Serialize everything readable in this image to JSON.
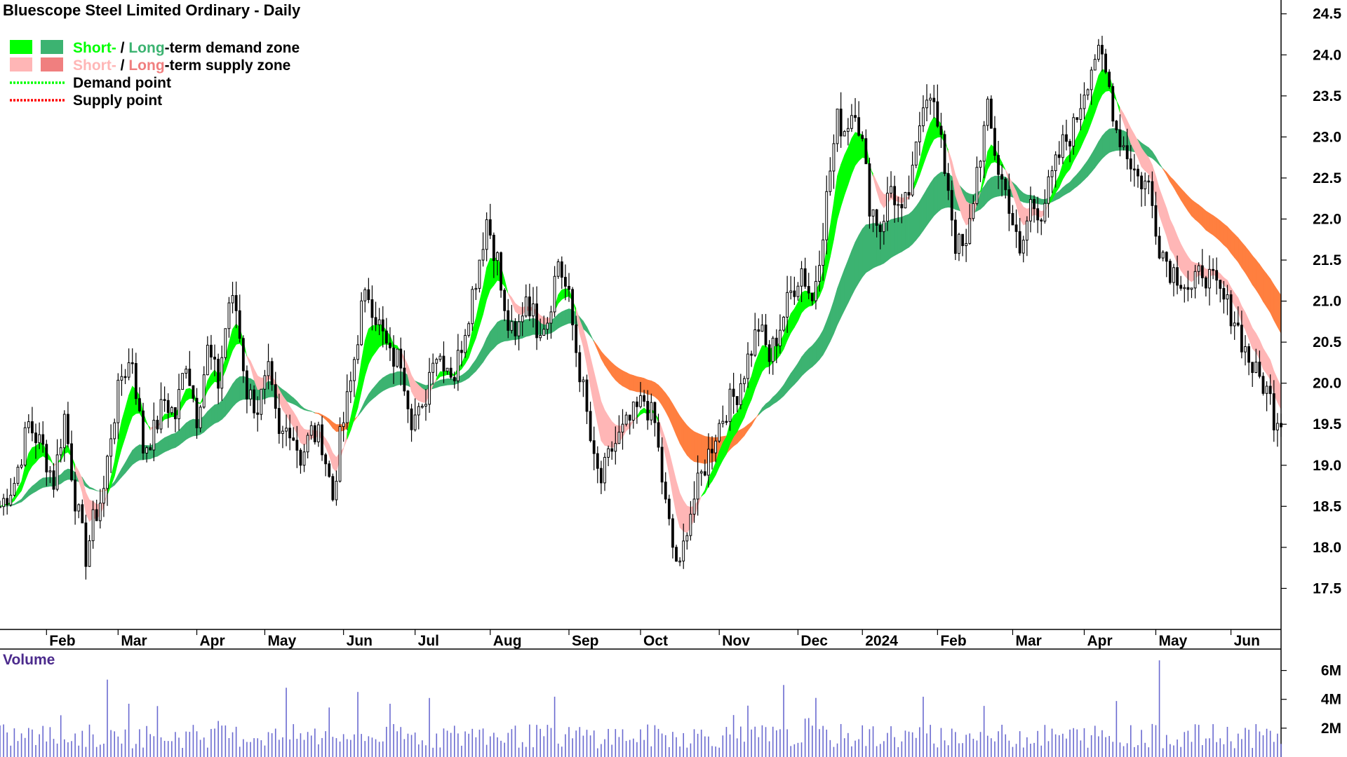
{
  "chart_data": {
    "type": "candlestick",
    "title": "Bluescope Steel Limited Ordinary - Daily",
    "legend": {
      "placement": "top-left",
      "items": [
        {
          "parts": [
            {
              "text": "Short-",
              "color": "#00ff00"
            },
            {
              "text": " / ",
              "color": "#000000"
            },
            {
              "text": "Long",
              "color": "#3cb371"
            },
            {
              "text": "-term demand zone",
              "color": "#000000"
            }
          ],
          "swatches": [
            "#00ff00",
            "#3cb371"
          ]
        },
        {
          "parts": [
            {
              "text": "Short-",
              "color": "#ffb6b6"
            },
            {
              "text": " / ",
              "color": "#000000"
            },
            {
              "text": "Long",
              "color": "#f07f7f"
            },
            {
              "text": "-term supply zone",
              "color": "#000000"
            }
          ],
          "swatches": [
            "#ffb6b6",
            "#f07f7f"
          ]
        },
        {
          "parts": [
            {
              "text": "Demand point",
              "color": "#000000"
            }
          ],
          "line": "#00ff00"
        },
        {
          "parts": [
            {
              "text": "Supply point",
              "color": "#000000"
            }
          ],
          "line": "#ff0000"
        }
      ]
    },
    "y_axis": {
      "side": "right",
      "range": [
        17.0,
        24.6
      ],
      "ticks": [
        "17.5",
        "18.0",
        "18.5",
        "19.0",
        "19.5",
        "20.0",
        "20.5",
        "21.0",
        "21.5",
        "22.0",
        "22.5",
        "23.0",
        "23.5",
        "24.0",
        "24.5"
      ]
    },
    "x_axis": {
      "range": [
        0,
        358
      ],
      "ticks": [
        {
          "label": "Feb",
          "x": 13
        },
        {
          "label": "Mar",
          "x": 33
        },
        {
          "label": "Apr",
          "x": 55
        },
        {
          "label": "May",
          "x": 74
        },
        {
          "label": "Jun",
          "x": 96
        },
        {
          "label": "Jul",
          "x": 116
        },
        {
          "label": "Aug",
          "x": 137
        },
        {
          "label": "Sep",
          "x": 159
        },
        {
          "label": "Oct",
          "x": 179
        },
        {
          "label": "Nov",
          "x": 201
        },
        {
          "label": "Dec",
          "x": 223
        },
        {
          "label": "2024",
          "x": 241
        },
        {
          "label": "Feb",
          "x": 262
        },
        {
          "label": "Mar",
          "x": 283
        },
        {
          "label": "Apr",
          "x": 303
        },
        {
          "label": "May",
          "x": 323
        },
        {
          "label": "Jun",
          "x": 344
        }
      ]
    },
    "price_anchors": [
      [
        0,
        18.5
      ],
      [
        4,
        18.8
      ],
      [
        8,
        19.5
      ],
      [
        12,
        19.2
      ],
      [
        15,
        18.8
      ],
      [
        18,
        19.6
      ],
      [
        21,
        18.6
      ],
      [
        24,
        17.9
      ],
      [
        26,
        18.3
      ],
      [
        29,
        18.7
      ],
      [
        31,
        19.4
      ],
      [
        34,
        20.1
      ],
      [
        37,
        20.3
      ],
      [
        40,
        19.2
      ],
      [
        43,
        19.4
      ],
      [
        46,
        19.8
      ],
      [
        49,
        19.6
      ],
      [
        52,
        20.3
      ],
      [
        55,
        19.6
      ],
      [
        58,
        20.4
      ],
      [
        61,
        20.0
      ],
      [
        64,
        21.0
      ],
      [
        66,
        20.9
      ],
      [
        69,
        19.9
      ],
      [
        72,
        19.7
      ],
      [
        75,
        20.1
      ],
      [
        78,
        19.3
      ],
      [
        81,
        19.5
      ],
      [
        84,
        19.1
      ],
      [
        87,
        19.4
      ],
      [
        90,
        19.3
      ],
      [
        93,
        18.6
      ],
      [
        95,
        19.3
      ],
      [
        98,
        20.0
      ],
      [
        101,
        20.9
      ],
      [
        103,
        21.1
      ],
      [
        106,
        20.7
      ],
      [
        109,
        20.3
      ],
      [
        112,
        20.3
      ],
      [
        115,
        19.6
      ],
      [
        118,
        19.6
      ],
      [
        121,
        20.4
      ],
      [
        124,
        20.3
      ],
      [
        127,
        20.1
      ],
      [
        130,
        20.7
      ],
      [
        133,
        21.3
      ],
      [
        136,
        22.0
      ],
      [
        139,
        21.5
      ],
      [
        141,
        20.8
      ],
      [
        144,
        20.5
      ],
      [
        147,
        21.1
      ],
      [
        150,
        20.7
      ],
      [
        153,
        20.8
      ],
      [
        156,
        21.5
      ],
      [
        159,
        21.0
      ],
      [
        161,
        20.4
      ],
      [
        163,
        19.9
      ],
      [
        166,
        19.0
      ],
      [
        168,
        18.8
      ],
      [
        171,
        19.2
      ],
      [
        174,
        19.4
      ],
      [
        177,
        19.6
      ],
      [
        180,
        19.8
      ],
      [
        183,
        19.5
      ],
      [
        186,
        18.5
      ],
      [
        188,
        18.0
      ],
      [
        190,
        17.7
      ],
      [
        192,
        18.3
      ],
      [
        194,
        18.6
      ],
      [
        197,
        19.0
      ],
      [
        200,
        19.4
      ],
      [
        203,
        19.7
      ],
      [
        206,
        19.9
      ],
      [
        209,
        20.3
      ],
      [
        212,
        20.7
      ],
      [
        215,
        20.3
      ],
      [
        218,
        20.7
      ],
      [
        221,
        21.1
      ],
      [
        224,
        21.4
      ],
      [
        227,
        21.0
      ],
      [
        230,
        21.9
      ],
      [
        232,
        22.6
      ],
      [
        234,
        23.2
      ],
      [
        236,
        23.1
      ],
      [
        239,
        23.4
      ],
      [
        241,
        22.9
      ],
      [
        243,
        22.2
      ],
      [
        246,
        21.9
      ],
      [
        249,
        22.4
      ],
      [
        252,
        22.0
      ],
      [
        255,
        22.5
      ],
      [
        258,
        23.5
      ],
      [
        260,
        23.6
      ],
      [
        262,
        23.1
      ],
      [
        265,
        22.4
      ],
      [
        267,
        21.7
      ],
      [
        270,
        21.6
      ],
      [
        273,
        22.6
      ],
      [
        276,
        23.3
      ],
      [
        279,
        22.6
      ],
      [
        282,
        22.2
      ],
      [
        285,
        21.5
      ],
      [
        288,
        22.2
      ],
      [
        291,
        22.1
      ],
      [
        294,
        22.5
      ],
      [
        297,
        22.9
      ],
      [
        300,
        23.1
      ],
      [
        303,
        23.6
      ],
      [
        306,
        24.0
      ],
      [
        308,
        23.9
      ],
      [
        310,
        23.6
      ],
      [
        312,
        23.1
      ],
      [
        315,
        22.8
      ],
      [
        318,
        22.5
      ],
      [
        321,
        22.4
      ],
      [
        324,
        21.7
      ],
      [
        327,
        21.4
      ],
      [
        330,
        21.3
      ],
      [
        333,
        21.1
      ],
      [
        336,
        21.4
      ],
      [
        339,
        21.2
      ],
      [
        342,
        21.0
      ],
      [
        345,
        20.8
      ],
      [
        348,
        20.4
      ],
      [
        351,
        20.1
      ],
      [
        353,
        20.0
      ],
      [
        355,
        19.8
      ],
      [
        356,
        19.6
      ]
    ],
    "volume": {
      "title": "Volume",
      "range": [
        0,
        7000000
      ],
      "ticks": [
        "2M",
        "4M",
        "6M"
      ],
      "color": "#6a6ad0"
    },
    "colors": {
      "short_demand": "#00ff00",
      "long_demand": "#3cb371",
      "short_supply": "#ffb6b6",
      "long_supply": "#ff7f3f",
      "candle": "#000000"
    }
  }
}
